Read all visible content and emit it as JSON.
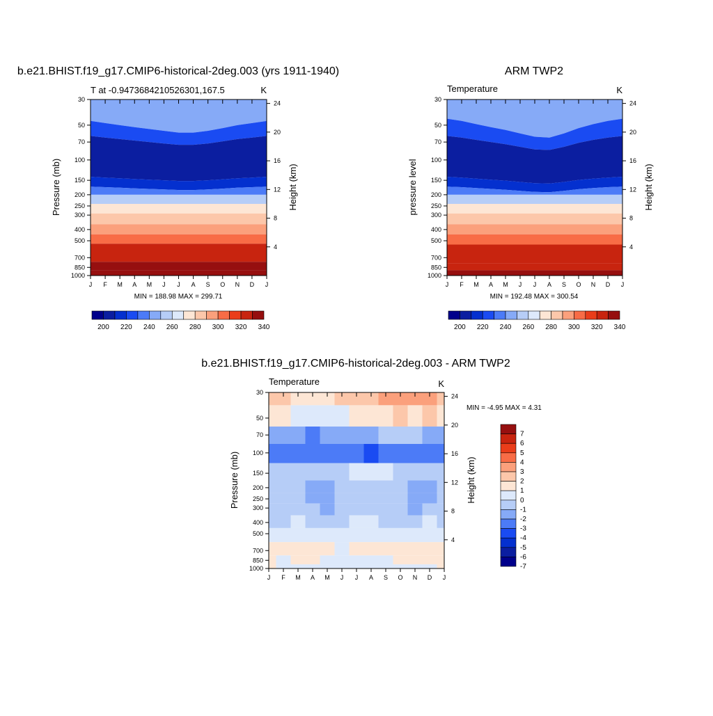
{
  "palette": {
    "temp_colors": [
      "#00008b",
      "#0b1ea0",
      "#0430cf",
      "#1a4bf2",
      "#4c7bf7",
      "#86aaf7",
      "#b6cdf7",
      "#dde9fb",
      "#fde6d5",
      "#fcc7aa",
      "#fba07c",
      "#f86c46",
      "#ea3d1a",
      "#c8240f",
      "#960f0f"
    ],
    "diff_colors": [
      "#00008b",
      "#0b1ea0",
      "#0430cf",
      "#1a4bf2",
      "#4c7bf7",
      "#86aaf7",
      "#b6cdf7",
      "#dde9fb",
      "#fde6d5",
      "#fcc7aa",
      "#fba07c",
      "#f86c46",
      "#ea3d1a",
      "#c8240f",
      "#960f0f"
    ]
  },
  "chart_data": [
    {
      "type": "heatmap",
      "main_title": "b.e21.BHIST.f19_g17.CMIP6-historical-2deg.003 (yrs 1911-1940)",
      "left_title": "T at -0.9473684210526301,167.5",
      "right_title": "K",
      "ylabel": "Pressure (mb)",
      "ylabel_right": "Height (km)",
      "x_ticks": [
        "J",
        "F",
        "M",
        "A",
        "M",
        "J",
        "J",
        "A",
        "S",
        "O",
        "N",
        "D",
        "J"
      ],
      "y_ticks": [
        "30",
        "50",
        "70",
        "100",
        "150",
        "200",
        "250",
        "300",
        "400",
        "500",
        "700",
        "850",
        "1000"
      ],
      "y_ticks_right": [
        "24",
        "20",
        "16",
        "12",
        "8",
        "4"
      ],
      "minmax_text": "MIN = 188.98 MAX = 299.71",
      "colorbar_labels": [
        "200",
        "220",
        "240",
        "260",
        "280",
        "300",
        "320",
        "340"
      ],
      "contour_levels": [
        195,
        200,
        205,
        210,
        215,
        220,
        225,
        230,
        240,
        250,
        260,
        270,
        280,
        290,
        300,
        310,
        320,
        330,
        340
      ],
      "levels_mb": [
        30,
        50,
        70,
        100,
        150,
        200,
        250,
        300,
        400,
        500,
        700,
        850,
        1000
      ],
      "layers_K": [
        {
          "top_mb": 30,
          "bottom_mb": 46,
          "K": 218
        },
        {
          "top_mb": 46,
          "bottom_mb": 62,
          "K": 208
        },
        {
          "top_mb": 62,
          "bottom_mb": 140,
          "K": 196
        },
        {
          "top_mb": 140,
          "bottom_mb": 170,
          "K": 204
        },
        {
          "top_mb": 170,
          "bottom_mb": 200,
          "K": 213
        },
        {
          "top_mb": 200,
          "bottom_mb": 240,
          "K": 222
        },
        {
          "top_mb": 240,
          "bottom_mb": 290,
          "K": 232
        },
        {
          "top_mb": 290,
          "bottom_mb": 360,
          "K": 245
        },
        {
          "top_mb": 360,
          "bottom_mb": 440,
          "K": 257
        },
        {
          "top_mb": 440,
          "bottom_mb": 530,
          "K": 268
        },
        {
          "top_mb": 530,
          "bottom_mb": 760,
          "K": 282
        },
        {
          "top_mb": 760,
          "bottom_mb": 900,
          "K": 290
        },
        {
          "top_mb": 900,
          "bottom_mb": 1000,
          "K": 296
        }
      ],
      "bump_mb_by_month": [
        0,
        2,
        4,
        6,
        8,
        10,
        12,
        12,
        10,
        7,
        4,
        2,
        0
      ]
    },
    {
      "type": "heatmap",
      "main_title": "ARM TWP2",
      "left_title": "Temperature",
      "right_title": "K",
      "ylabel": "pressure level",
      "ylabel_right": "Height (km)",
      "x_ticks": [
        "J",
        "F",
        "M",
        "A",
        "M",
        "J",
        "J",
        "A",
        "S",
        "O",
        "N",
        "D",
        "J"
      ],
      "y_ticks": [
        "30",
        "50",
        "70",
        "100",
        "150",
        "200",
        "250",
        "300",
        "400",
        "500",
        "700",
        "850",
        "1000"
      ],
      "y_ticks_right": [
        "24",
        "20",
        "16",
        "12",
        "8",
        "4"
      ],
      "minmax_text": "MIN = 192.48 MAX = 300.54",
      "colorbar_labels": [
        "200",
        "220",
        "240",
        "260",
        "280",
        "300",
        "320",
        "340"
      ],
      "contour_levels": [
        195,
        200,
        205,
        210,
        215,
        220,
        225,
        230,
        240,
        250,
        260,
        270,
        280,
        290,
        300,
        310,
        320,
        330,
        340
      ],
      "levels_mb": [
        30,
        50,
        70,
        100,
        150,
        200,
        250,
        300,
        400,
        500,
        700,
        850,
        1000
      ],
      "layers_K": [
        {
          "top_mb": 30,
          "bottom_mb": 44,
          "K": 217
        },
        {
          "top_mb": 44,
          "bottom_mb": 62,
          "K": 207
        },
        {
          "top_mb": 62,
          "bottom_mb": 140,
          "K": 195
        },
        {
          "top_mb": 140,
          "bottom_mb": 170,
          "K": 203
        },
        {
          "top_mb": 170,
          "bottom_mb": 200,
          "K": 212
        },
        {
          "top_mb": 200,
          "bottom_mb": 240,
          "K": 221
        },
        {
          "top_mb": 240,
          "bottom_mb": 290,
          "K": 231
        },
        {
          "top_mb": 290,
          "bottom_mb": 360,
          "K": 244
        },
        {
          "top_mb": 360,
          "bottom_mb": 440,
          "K": 256
        },
        {
          "top_mb": 440,
          "bottom_mb": 540,
          "K": 267
        },
        {
          "top_mb": 540,
          "bottom_mb": 780,
          "K": 281
        },
        {
          "top_mb": 780,
          "bottom_mb": 900,
          "K": 289
        },
        {
          "top_mb": 900,
          "bottom_mb": 1000,
          "K": 297
        }
      ],
      "bump_mb_by_month": [
        0,
        2,
        5,
        8,
        11,
        15,
        19,
        20,
        15,
        9,
        5,
        2,
        0
      ]
    },
    {
      "type": "heatmap",
      "main_title": "b.e21.BHIST.f19_g17.CMIP6-historical-2deg.003 - ARM TWP2",
      "left_title": "Temperature",
      "right_title": "K",
      "ylabel": "Pressure (mb)",
      "ylabel_right": "Height (km)",
      "x_ticks": [
        "J",
        "F",
        "M",
        "A",
        "M",
        "J",
        "J",
        "A",
        "S",
        "O",
        "N",
        "D",
        "J"
      ],
      "y_ticks": [
        "30",
        "50",
        "70",
        "100",
        "150",
        "200",
        "250",
        "300",
        "400",
        "500",
        "700",
        "850",
        "1000"
      ],
      "y_ticks_right": [
        "24",
        "20",
        "16",
        "12",
        "8",
        "4"
      ],
      "minmax_text": "MIN =  -4.95 MAX =   4.31",
      "colorbar_labels": [
        "7",
        "6",
        "5",
        "4",
        "3",
        "2",
        "1",
        "0",
        "-1",
        "-2",
        "-3",
        "-4",
        "-5",
        "-6",
        "-7"
      ],
      "contour_levels": [
        -7,
        -6,
        -5,
        -4,
        -3,
        -2,
        -1,
        0,
        1,
        2,
        3,
        4,
        5,
        6,
        7
      ],
      "months": [
        "J",
        "F",
        "M",
        "A",
        "M",
        "J",
        "J",
        "A",
        "S",
        "O",
        "N",
        "D",
        "J"
      ],
      "levels_mb": [
        30,
        50,
        70,
        100,
        150,
        200,
        250,
        300,
        400,
        500,
        700,
        850,
        1000
      ],
      "diff_K": [
        [
          1.8,
          1.2,
          0.6,
          0.4,
          0.6,
          1.0,
          1.6,
          1.8,
          2.2,
          2.6,
          2.0,
          2.4,
          1.8
        ],
        [
          0.8,
          0.3,
          -0.4,
          -0.8,
          -0.6,
          -0.3,
          0.2,
          0.5,
          0.8,
          1.2,
          0.8,
          1.0,
          0.8
        ],
        [
          -2.6,
          -2.4,
          -2.8,
          -3.2,
          -3.0,
          -2.8,
          -2.4,
          -2.2,
          -2.0,
          -1.8,
          -2.0,
          -2.4,
          -2.6
        ],
        [
          -3.6,
          -3.8,
          -3.4,
          -3.2,
          -3.4,
          -3.8,
          -3.6,
          -4.2,
          -3.9,
          -3.4,
          -3.4,
          -3.2,
          -3.6
        ],
        [
          -2.0,
          -2.0,
          -1.8,
          -1.8,
          -1.6,
          -1.2,
          -0.9,
          -0.6,
          -0.7,
          -1.2,
          -1.6,
          -1.8,
          -2.0
        ],
        [
          -1.8,
          -1.6,
          -1.6,
          -2.2,
          -2.4,
          -1.6,
          -1.2,
          -1.1,
          -1.6,
          -2.0,
          -2.2,
          -2.4,
          -1.8
        ],
        [
          -1.6,
          -1.4,
          -1.6,
          -2.2,
          -2.4,
          -1.6,
          -1.4,
          -1.6,
          -1.6,
          -2.0,
          -2.2,
          -2.2,
          -1.6
        ],
        [
          -1.4,
          -1.5,
          -1.6,
          -2.0,
          -2.1,
          -1.6,
          -1.5,
          -1.6,
          -1.6,
          -2.0,
          -2.1,
          -1.8,
          -1.4
        ],
        [
          -1.2,
          -1.2,
          -1.0,
          -1.2,
          -1.4,
          -1.1,
          -1.0,
          -1.0,
          -1.2,
          -1.4,
          -1.4,
          -1.0,
          -1.2
        ],
        [
          -0.2,
          -0.4,
          -0.8,
          -0.8,
          -0.8,
          -0.6,
          -0.4,
          -0.2,
          -0.4,
          -0.6,
          -0.4,
          -0.2,
          -0.2
        ],
        [
          0.4,
          0.2,
          0.4,
          0.4,
          0.2,
          -0.2,
          0.0,
          0.3,
          0.4,
          0.2,
          0.4,
          0.4,
          0.4
        ],
        [
          0.2,
          -0.2,
          0.2,
          0.2,
          -0.2,
          -0.4,
          -0.2,
          -0.2,
          -0.2,
          0.0,
          0.2,
          0.2,
          0.2
        ],
        [
          0.0,
          -0.2,
          -0.2,
          -0.4,
          -0.2,
          -0.8,
          -0.6,
          -1.0,
          -0.8,
          -0.4,
          -0.2,
          -0.2,
          0.0
        ]
      ]
    }
  ]
}
